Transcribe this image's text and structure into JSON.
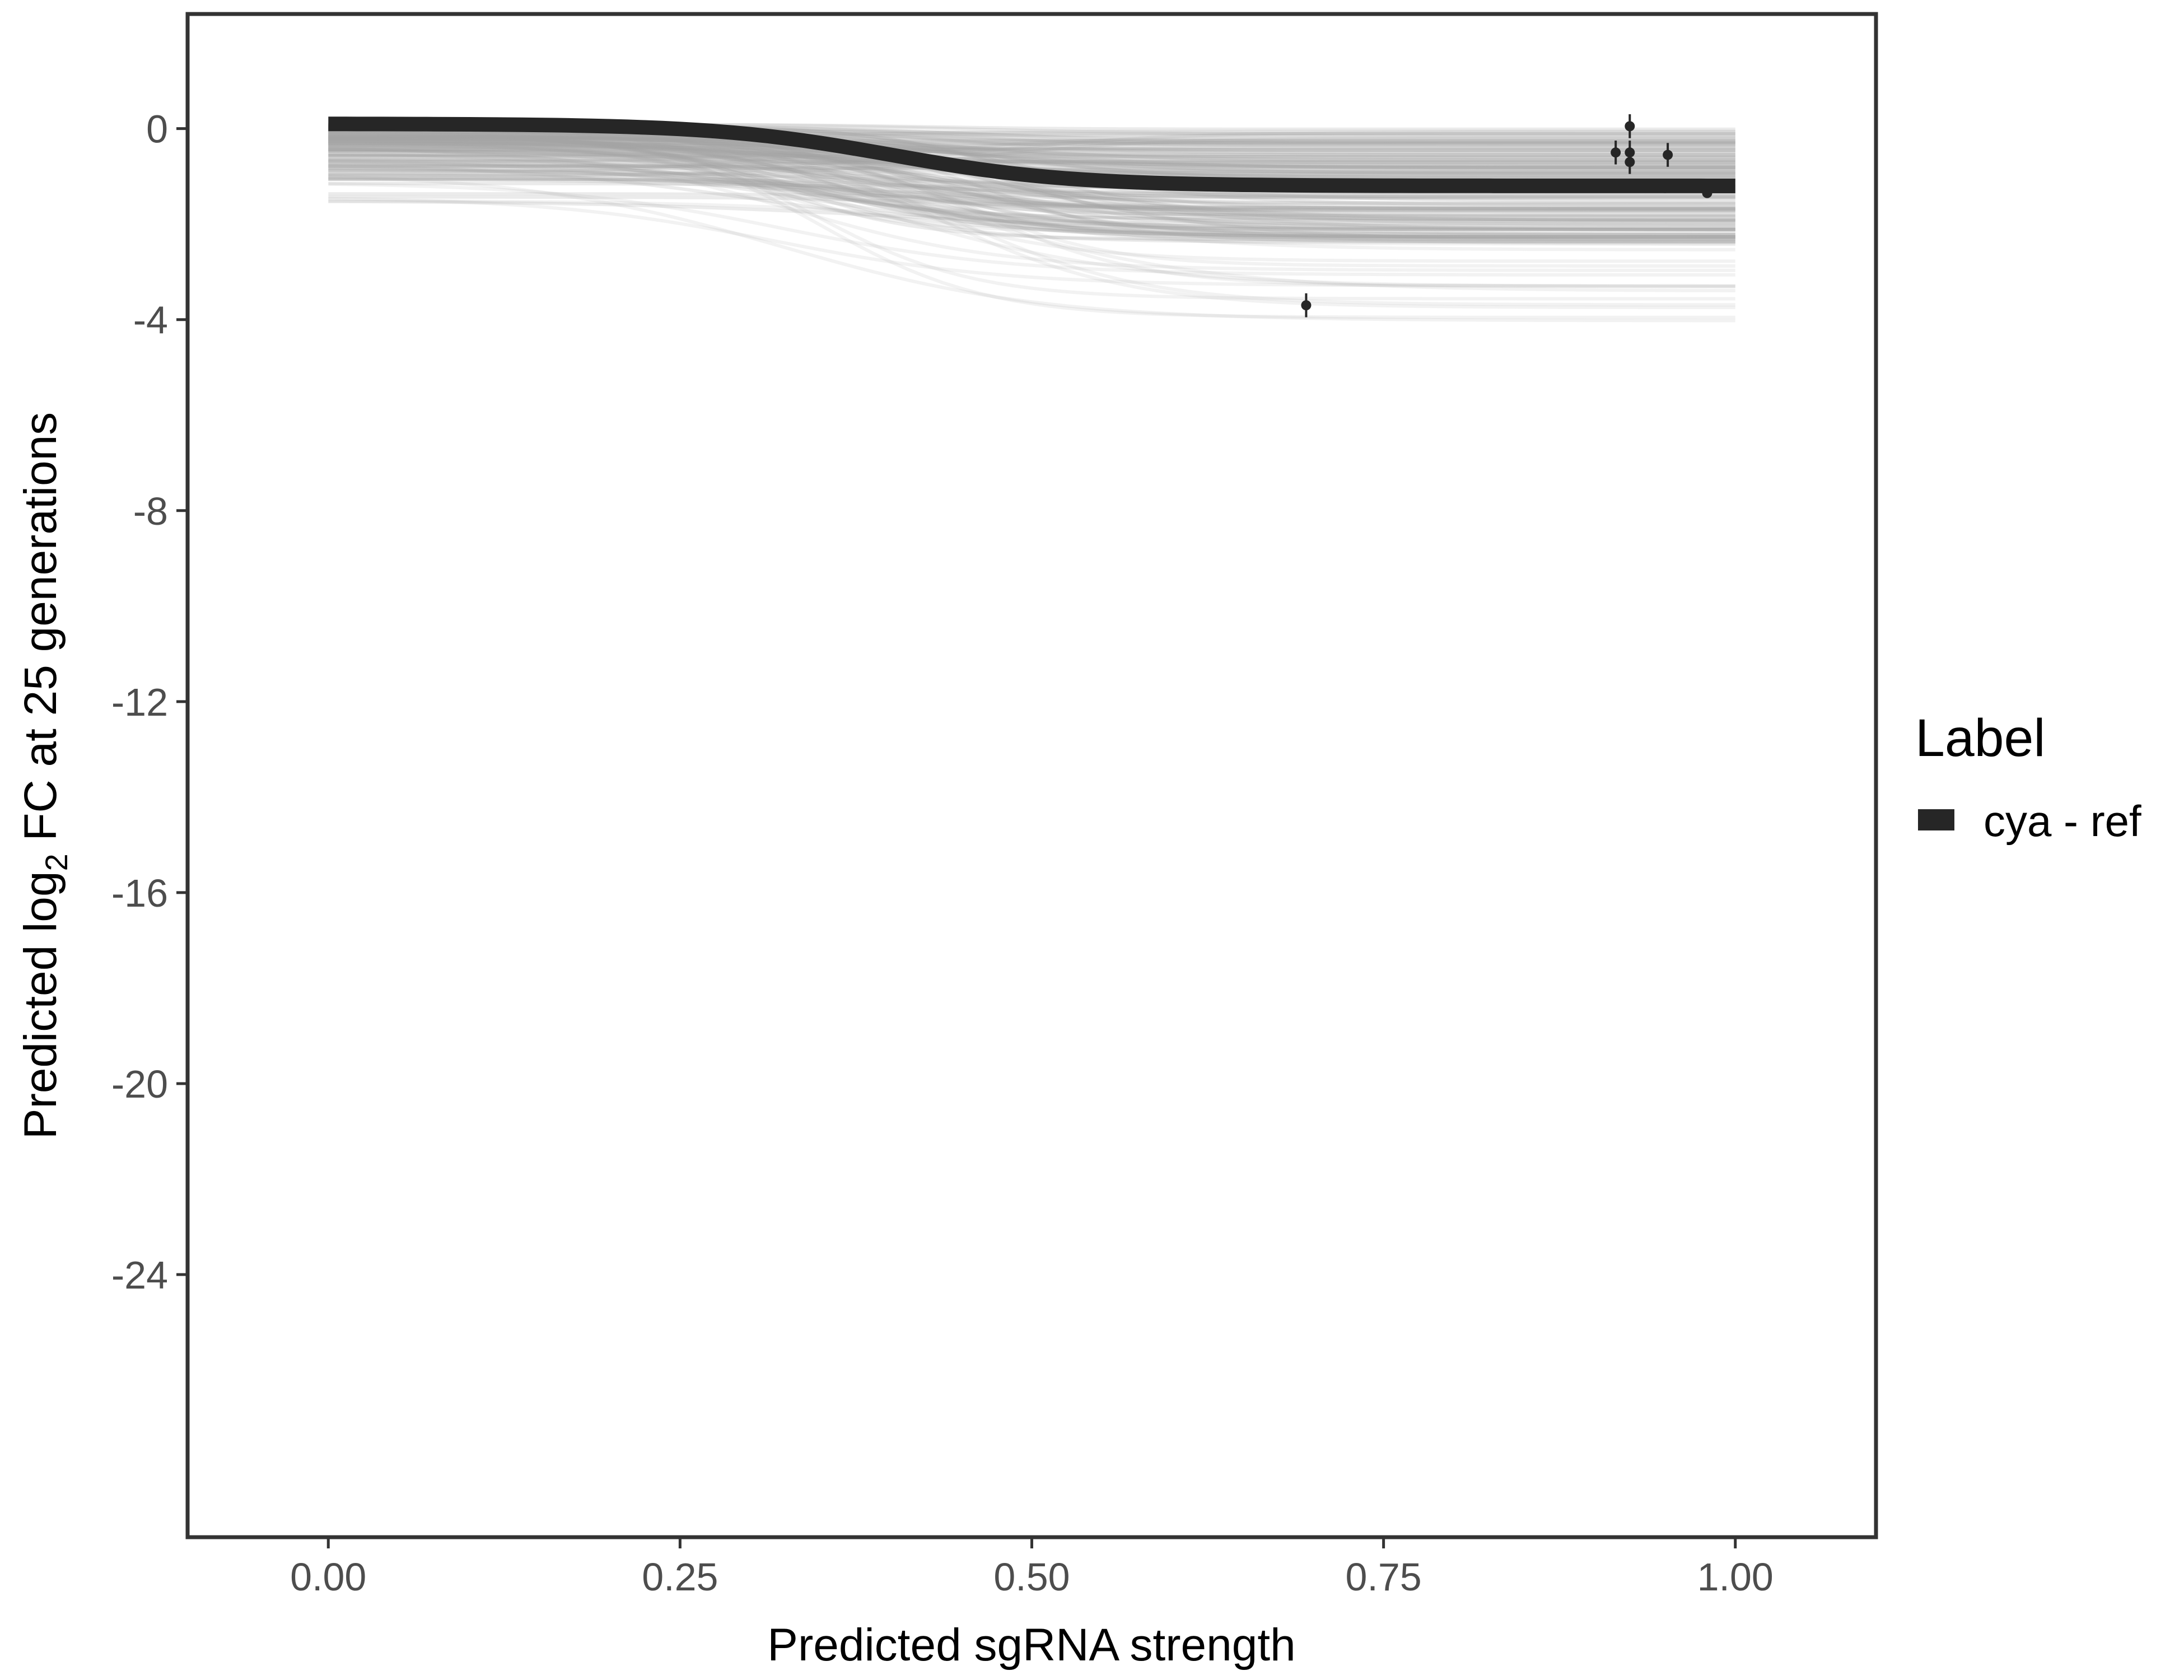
{
  "chart_data": {
    "type": "line",
    "title": "",
    "xlabel": "Predicted sgRNA strength",
    "ylabel": {
      "prefix": "Predicted  log",
      "subscript": "2",
      "suffix": " FC at 25 generations"
    },
    "xlim": [
      -0.1,
      1.1
    ],
    "ylim": [
      -29.5,
      2.4
    ],
    "x_ticks": [
      {
        "value": 0.0,
        "label": "0.00"
      },
      {
        "value": 0.25,
        "label": "0.25"
      },
      {
        "value": 0.5,
        "label": "0.50"
      },
      {
        "value": 0.75,
        "label": "0.75"
      },
      {
        "value": 1.0,
        "label": "1.00"
      }
    ],
    "y_ticks": [
      {
        "value": 0,
        "label": "0"
      },
      {
        "value": -4,
        "label": "-4"
      },
      {
        "value": -8,
        "label": "-8"
      },
      {
        "value": -12,
        "label": "-12"
      },
      {
        "value": -16,
        "label": "-16"
      },
      {
        "value": -20,
        "label": "-20"
      },
      {
        "value": -24,
        "label": "-24"
      }
    ],
    "grid": false,
    "legend": {
      "title": "Label",
      "position": "right",
      "entries": [
        {
          "label": "cya - ref",
          "color": "#262626"
        }
      ]
    },
    "colors": {
      "main_curve": "#262626",
      "posterior_draws": "#a6a6a6",
      "points": "#262626",
      "axis": "#333333"
    },
    "main_series": {
      "name": "cya - ref",
      "model": "logistic",
      "start": 0.1,
      "end": -1.2,
      "midpoint": 0.4,
      "steepness": 16
    },
    "posterior_draws": {
      "count": 160,
      "start_range": [
        -1.6,
        0.1
      ],
      "end_range": [
        -4.2,
        0.0
      ],
      "midpoint_range": [
        0.3,
        0.5
      ],
      "steepness_range": [
        10,
        20
      ]
    },
    "points": [
      {
        "x": 0.915,
        "y": -0.5,
        "err": 0.25
      },
      {
        "x": 0.925,
        "y": 0.05,
        "err": 0.25
      },
      {
        "x": 0.925,
        "y": -0.5,
        "err": 0.25
      },
      {
        "x": 0.925,
        "y": -0.7,
        "err": 0.25
      },
      {
        "x": 0.952,
        "y": -0.55,
        "err": 0.25
      },
      {
        "x": 0.95,
        "y": -1.2,
        "err": 0.15
      },
      {
        "x": 0.98,
        "y": -1.35,
        "err": 0.1
      },
      {
        "x": 0.695,
        "y": -3.7,
        "err": 0.25
      }
    ]
  }
}
